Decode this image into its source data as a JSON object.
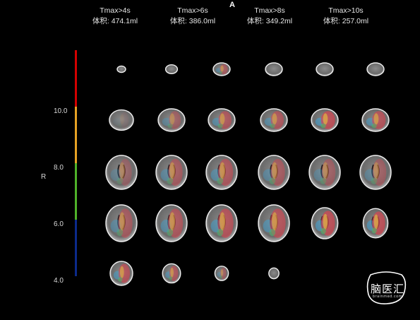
{
  "panel": {
    "letter": "A"
  },
  "columns": [
    {
      "threshold": "Tmax>4s",
      "volume": "体积: 474.1ml"
    },
    {
      "threshold": "Tmax>6s",
      "volume": "体积: 386.0ml"
    },
    {
      "threshold": "Tmax>8s",
      "volume": "体积: 349.2ml"
    },
    {
      "threshold": "Tmax>10s",
      "volume": "体积: 257.0ml"
    }
  ],
  "colorbar": {
    "label": "R",
    "ticks": [
      "10.0",
      "8.0",
      "6.0",
      "4.0"
    ],
    "colors": [
      "#d40000",
      "#e6a224",
      "#4fb229",
      "#0c2a8a"
    ]
  },
  "logo": {
    "text": "脑医汇",
    "subtext": "brainmed.com"
  }
}
